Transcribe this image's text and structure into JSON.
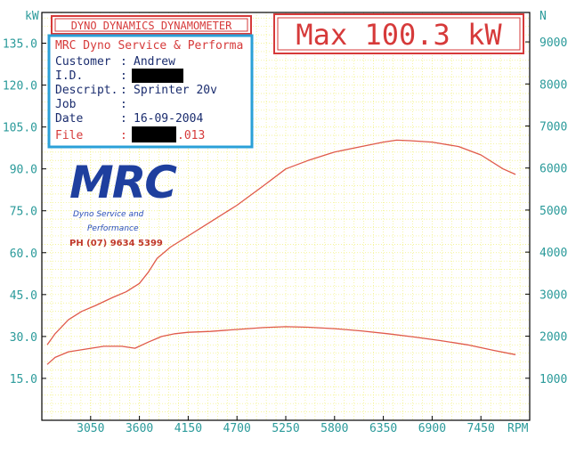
{
  "header": {
    "title": "DYNO DYNAMICS DYNAMOMETER",
    "max_label": "Max 100.3 kW"
  },
  "info_panel": {
    "company": "MRC Dyno Service & Performa",
    "rows": [
      {
        "label": "Customer",
        "sep": ":",
        "value": "Andrew"
      },
      {
        "label": "I.D.",
        "sep": ":",
        "value": ""
      },
      {
        "label": "Descript.",
        "sep": ":",
        "value": "Sprinter 20v"
      },
      {
        "label": "Job",
        "sep": ":",
        "value": ""
      },
      {
        "label": "Date",
        "sep": ":",
        "value": "16-09-2004"
      },
      {
        "label": "File",
        "sep": ":",
        "value": ".013"
      }
    ]
  },
  "logo": {
    "brand": "MRC",
    "line1": "Dyno Service and",
    "line2": "Performance",
    "phone": "PH (07) 9634 5399"
  },
  "colors": {
    "grid": "#f0f07a",
    "axis_text": "#2a9a9a",
    "curve": "#e05a4a",
    "panel_border": "#2aa0d8",
    "header_red": "#d63a3a",
    "logo_blue": "#1e3f9e"
  },
  "chart_data": {
    "type": "line",
    "xlabel": "RPM",
    "ylabel_left": "kW",
    "ylabel_right": "N",
    "x_ticks": [
      3050,
      3600,
      4150,
      4700,
      5250,
      5800,
      6350,
      6900,
      7450
    ],
    "y_left_ticks": [
      15.0,
      30.0,
      45.0,
      60.0,
      75.0,
      90.0,
      105.0,
      120.0,
      135.0
    ],
    "y_right_ticks": [
      1000,
      2000,
      3000,
      4000,
      5000,
      6000,
      7000,
      8000,
      9000
    ],
    "xlim": [
      2500,
      8000
    ],
    "ylim_left": [
      0,
      146
    ],
    "ylim_right": [
      0,
      9700
    ],
    "grid": true,
    "series": [
      {
        "axis": "left",
        "x": [
          2560,
          2650,
          2800,
          2950,
          3100,
          3300,
          3450,
          3600,
          3700,
          3800,
          3950,
          4150,
          4400,
          4700,
          5000,
          5250,
          5500,
          5800,
          6100,
          6350,
          6500,
          6650,
          6900,
          7200,
          7450,
          7700,
          7840
        ],
        "y": [
          27,
          31,
          36,
          39,
          41,
          44,
          46,
          49,
          53,
          58,
          62,
          66,
          71,
          77,
          84,
          90,
          93,
          96,
          98,
          99.6,
          100.3,
          100.1,
          99.6,
          98,
          95,
          90,
          88
        ]
      },
      {
        "axis": "left",
        "x": [
          2560,
          2650,
          2800,
          3000,
          3200,
          3400,
          3550,
          3700,
          3850,
          4000,
          4150,
          4400,
          4700,
          5000,
          5250,
          5500,
          5800,
          6100,
          6400,
          6700,
          7000,
          7300,
          7600,
          7840
        ],
        "y": [
          20,
          22.5,
          24.5,
          25.5,
          26.5,
          26.5,
          25.8,
          28,
          30,
          31,
          31.5,
          31.8,
          32.5,
          33.2,
          33.5,
          33.3,
          32.8,
          32,
          31,
          29.8,
          28.5,
          27,
          25,
          23.5
        ]
      }
    ]
  }
}
